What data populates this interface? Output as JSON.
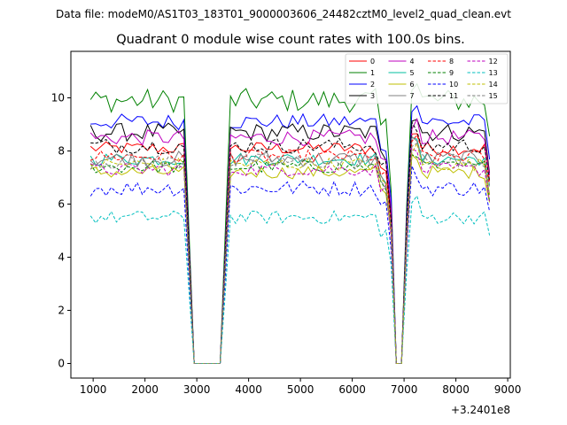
{
  "chart_data": {
    "type": "line",
    "suptitle": "Data file: modeM0/AS1T03_183T01_9000003606_24482cztM0_level2_quad_clean.evt",
    "title": "Quadrant 0 module wise count rates with 100.0s bins.",
    "xlabel": "",
    "ylabel": "",
    "x_offset_label": "+3.2401e8",
    "xlim": [
      570,
      9050
    ],
    "ylim": [
      -0.55,
      11.75
    ],
    "x_ticks": [
      1000,
      2000,
      3000,
      4000,
      5000,
      6000,
      7000,
      8000,
      9000
    ],
    "x_tick_labels": [
      "1000",
      "2000",
      "3000",
      "4000",
      "5000",
      "6000",
      "7000",
      "8000",
      "9000"
    ],
    "y_ticks": [
      0,
      2,
      4,
      6,
      8,
      10
    ],
    "y_tick_labels": [
      "0",
      "2",
      "4",
      "6",
      "8",
      "10"
    ],
    "grid": false,
    "legend_position": "top-right",
    "x_start": 950,
    "bin_width": 100,
    "series": [
      {
        "name": "0",
        "color": "#ff0000",
        "dash": "solid",
        "level": 8.1,
        "wobble": 0.25
      },
      {
        "name": "1",
        "color": "#008000",
        "dash": "solid",
        "level": 9.9,
        "wobble": 0.45
      },
      {
        "name": "2",
        "color": "#0000ff",
        "dash": "solid",
        "level": 9.1,
        "wobble": 0.3
      },
      {
        "name": "3",
        "color": "#000000",
        "dash": "solid",
        "level": 8.7,
        "wobble": 0.35
      },
      {
        "name": "4",
        "color": "#bf00bf",
        "dash": "solid",
        "level": 8.5,
        "wobble": 0.3
      },
      {
        "name": "5",
        "color": "#00bf9f",
        "dash": "solid",
        "level": 7.7,
        "wobble": 0.25
      },
      {
        "name": "6",
        "color": "#bfbf00",
        "dash": "solid",
        "level": 7.2,
        "wobble": 0.25
      },
      {
        "name": "7",
        "color": "#808080",
        "dash": "solid",
        "level": 7.7,
        "wobble": 0.3
      },
      {
        "name": "8",
        "color": "#ff0000",
        "dash": "dashed",
        "level": 7.8,
        "wobble": 0.25
      },
      {
        "name": "9",
        "color": "#008000",
        "dash": "dashed",
        "level": 7.4,
        "wobble": 0.25
      },
      {
        "name": "10",
        "color": "#0000ff",
        "dash": "dashed",
        "level": 6.6,
        "wobble": 0.3
      },
      {
        "name": "11",
        "color": "#000000",
        "dash": "dashed",
        "level": 8.2,
        "wobble": 0.3
      },
      {
        "name": "12",
        "color": "#bf00bf",
        "dash": "dashed",
        "level": 7.3,
        "wobble": 0.25
      },
      {
        "name": "13",
        "color": "#00bfbf",
        "dash": "dashed",
        "level": 5.5,
        "wobble": 0.25
      },
      {
        "name": "14",
        "color": "#bfbf00",
        "dash": "dashed",
        "level": 7.5,
        "wobble": 0.25
      },
      {
        "name": "15",
        "color": "#808080",
        "dash": "dashed",
        "level": 7.6,
        "wobble": 0.3
      }
    ]
  }
}
